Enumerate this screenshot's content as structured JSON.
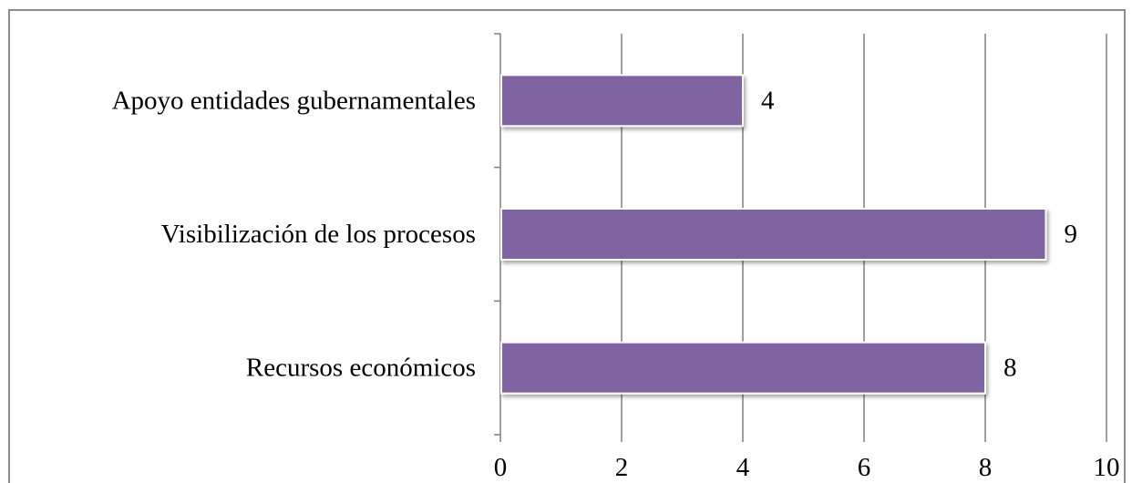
{
  "chart_data": {
    "type": "bar",
    "orientation": "horizontal",
    "categories": [
      "Apoyo entidades gubernamentales",
      "Visibilización de los procesos",
      "Recursos económicos"
    ],
    "values": [
      4,
      9,
      8
    ],
    "data_labels": [
      "4",
      "9",
      "8"
    ],
    "xlim": [
      0,
      10
    ],
    "x_ticks": [
      0,
      2,
      4,
      6,
      8,
      10
    ],
    "x_tick_labels": [
      "0",
      "2",
      "4",
      "6",
      "8",
      "10"
    ],
    "grid": "vertical",
    "legend": "none",
    "title": "",
    "xlabel": "",
    "ylabel": "",
    "colors": {
      "bar": "#8064a2",
      "bar_edge": "#ffffff",
      "grid": "#7f7f7f",
      "axis": "#7f7f7f"
    }
  }
}
